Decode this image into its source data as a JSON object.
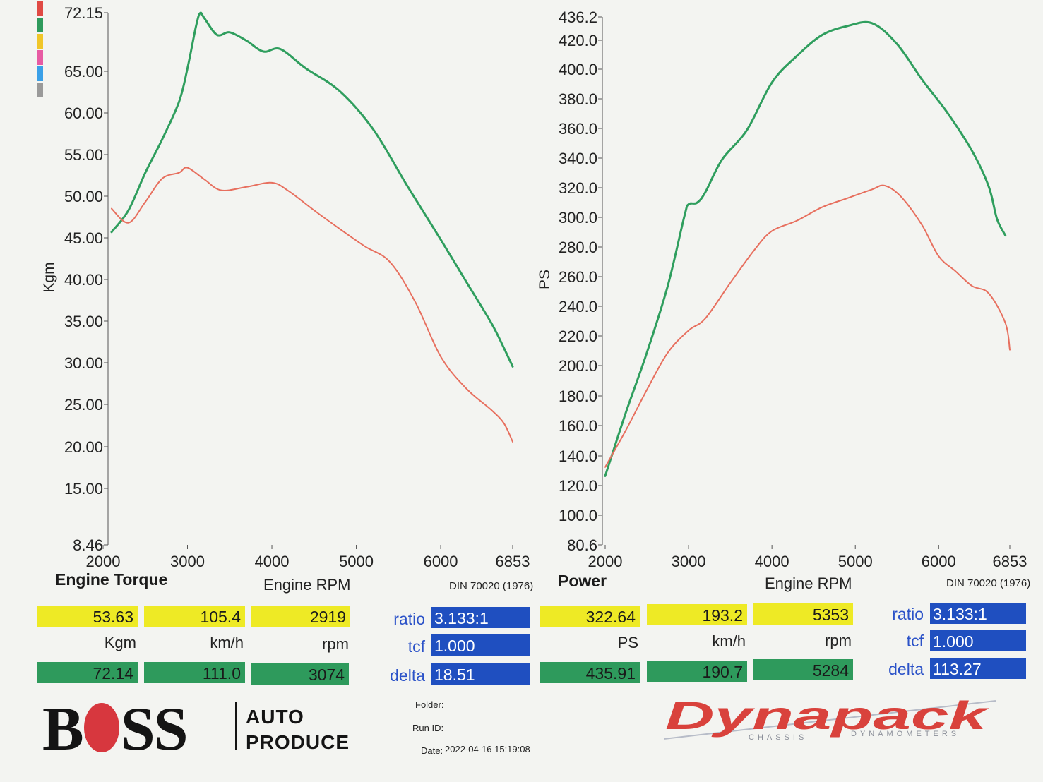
{
  "torque_panel": {
    "title": "Engine Torque",
    "x_axis_label": "Engine RPM",
    "standard": "DIN 70020 (1976)",
    "y_axis_label": "Kgm"
  },
  "power_panel": {
    "title": "Power",
    "x_axis_label": "Engine RPM",
    "standard": "DIN 70020 (1976)",
    "y_axis_label": "PS"
  },
  "legend_colors": [
    "#e04a44",
    "#2e9a5c",
    "#f0c629",
    "#e75ba3",
    "#3aa0e8",
    "#9a9a9a"
  ],
  "colors": {
    "run_red": "#e76f5e",
    "run_green": "#2f9e5e",
    "yellow": "#eeea25",
    "green": "#2e9a5c",
    "blue": "#1f4fc0"
  },
  "torque_readout": {
    "row1": [
      "53.63",
      "105.4",
      "2919"
    ],
    "units": [
      "Kgm",
      "km/h",
      "rpm"
    ],
    "row2": [
      "72.14",
      "111.0",
      "3074"
    ],
    "ratio_label": "ratio",
    "ratio_value": "3.133:1",
    "tcf_label": "tcf",
    "tcf_value": "1.000",
    "delta_label": "delta",
    "delta_value": "18.51"
  },
  "power_readout": {
    "row1": [
      "322.64",
      "193.2",
      "5353"
    ],
    "units": [
      "PS",
      "km/h",
      "rpm"
    ],
    "row2": [
      "435.91",
      "190.7",
      "5284"
    ],
    "ratio_label": "ratio",
    "ratio_value": "3.133:1",
    "tcf_label": "tcf",
    "tcf_value": "1.000",
    "delta_label": "delta",
    "delta_value": "113.27"
  },
  "branding": {
    "boss_pre": "B",
    "boss_post": "SS",
    "boss_sub1": "AUTO",
    "boss_sub2": "PRODUCE",
    "dynapack": "Dynapack",
    "dynapack_sub_left": "CHASSIS",
    "dynapack_sub_right": "DYNAMOMETERS"
  },
  "meta": {
    "folder_label": "Folder:",
    "run_label": "Run ID:",
    "date_label": "Date:",
    "date_value": "2022-04-16 15:19:08"
  },
  "chart_data": [
    {
      "type": "line",
      "title": "Engine Torque",
      "xlabel": "Engine RPM",
      "ylabel": "Kgm",
      "xlim": [
        2000,
        6853
      ],
      "ylim": [
        8.46,
        72.15
      ],
      "x_ticks": [
        2000,
        3000,
        4000,
        5000,
        6000,
        6853
      ],
      "y_ticks": [
        "72.15",
        "65.00",
        "60.00",
        "55.00",
        "50.00",
        "45.00",
        "40.00",
        "35.00",
        "30.00",
        "25.00",
        "20.00",
        "15.00",
        "8.46"
      ],
      "series": [
        {
          "color": "#2f9e5e",
          "x": [
            2100,
            2300,
            2500,
            2700,
            2900,
            3000,
            3100,
            3150,
            3200,
            3350,
            3500,
            3700,
            3900,
            4100,
            4400,
            4800,
            5200,
            5600,
            6000,
            6300,
            6600,
            6750,
            6853
          ],
          "y": [
            45.9,
            48.5,
            53.0,
            57.0,
            61.5,
            65.5,
            70.5,
            72.1,
            71.5,
            69.5,
            69.8,
            68.8,
            67.5,
            67.8,
            65.5,
            62.8,
            58.2,
            51.5,
            45.0,
            40.0,
            35.0,
            32.0,
            29.8
          ]
        },
        {
          "color": "#e76f5e",
          "x": [
            2100,
            2300,
            2500,
            2700,
            2900,
            3000,
            3200,
            3400,
            3700,
            4000,
            4200,
            4500,
            4800,
            5100,
            5400,
            5700,
            6000,
            6300,
            6600,
            6750,
            6853
          ],
          "y": [
            48.7,
            47.0,
            49.5,
            52.3,
            53.0,
            53.6,
            52.2,
            50.9,
            51.3,
            51.8,
            50.8,
            48.5,
            46.3,
            44.2,
            42.3,
            37.5,
            31.0,
            27.2,
            24.6,
            23.0,
            20.8
          ]
        }
      ]
    },
    {
      "type": "line",
      "title": "Power",
      "xlabel": "Engine RPM",
      "ylabel": "PS",
      "xlim": [
        2000,
        6853
      ],
      "ylim": [
        80.6,
        436.2
      ],
      "x_ticks": [
        2000,
        3000,
        4000,
        5000,
        6000,
        6853
      ],
      "y_ticks": [
        "436.2",
        "420.0",
        "400.0",
        "380.0",
        "360.0",
        "340.0",
        "320.0",
        "300.0",
        "280.0",
        "260.0",
        "240.0",
        "220.0",
        "200.0",
        "180.0",
        "160.0",
        "140.0",
        "120.0",
        "100.0",
        "80.6"
      ],
      "series": [
        {
          "color": "#2f9e5e",
          "x": [
            2000,
            2250,
            2500,
            2750,
            2950,
            3000,
            3100,
            3200,
            3400,
            3700,
            4000,
            4300,
            4600,
            4900,
            5200,
            5500,
            5800,
            6100,
            6400,
            6600,
            6700,
            6800
          ],
          "y": [
            127,
            170,
            210,
            255,
            302,
            310,
            311,
            318,
            340,
            360,
            392,
            410,
            424,
            430,
            432,
            418,
            394,
            372,
            346,
            322,
            300,
            289
          ]
        },
        {
          "color": "#e76f5e",
          "x": [
            2000,
            2250,
            2500,
            2750,
            3000,
            3200,
            3500,
            3800,
            4000,
            4300,
            4600,
            4900,
            5200,
            5353,
            5550,
            5800,
            6000,
            6200,
            6400,
            6600,
            6800,
            6853
          ],
          "y": [
            133,
            158,
            185,
            210,
            225,
            233,
            257,
            280,
            292,
            299,
            308,
            314,
            320,
            322.6,
            315,
            296,
            275,
            265,
            255,
            250,
            230,
            212
          ]
        }
      ]
    }
  ]
}
